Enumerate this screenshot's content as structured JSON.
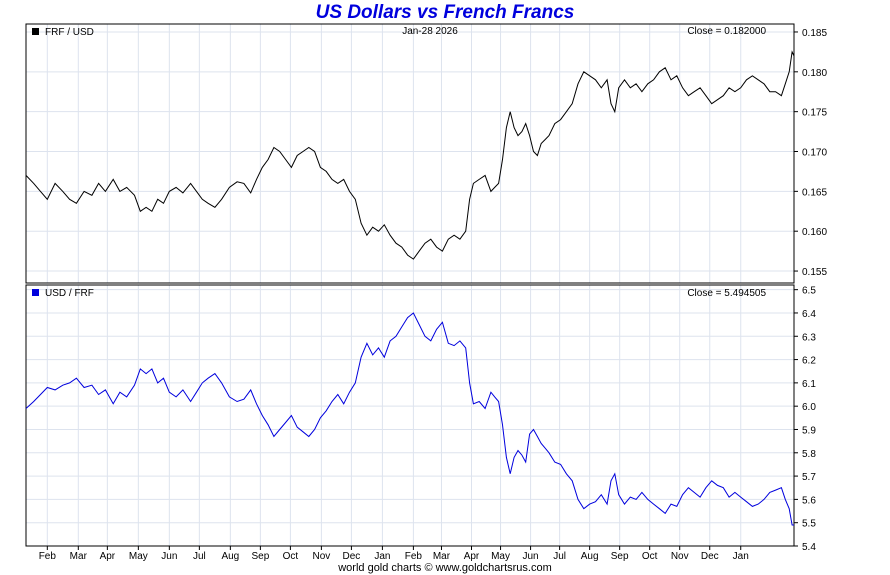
{
  "title": "US Dollars vs French Francs",
  "footer": "world gold charts © www.goldchartsrus.com",
  "chart_data": [
    {
      "type": "line",
      "series_label": "FRF / USD",
      "date_label": "Jan-28  2026",
      "close_label": "Close = 0.182000",
      "color": "#000000",
      "ylim": [
        0.1535,
        0.186
      ],
      "yticks": [
        "0.155",
        "0.160",
        "0.165",
        "0.170",
        "0.175",
        "0.180",
        "0.185"
      ],
      "x_months": [
        "Feb",
        "Mar",
        "Apr",
        "May",
        "Jun",
        "Jul",
        "Aug",
        "Sep",
        "Oct",
        "Nov",
        "Dec",
        "Jan",
        "Feb",
        "Mar",
        "Apr",
        "May",
        "Jun",
        "Jul",
        "Aug",
        "Sep",
        "Oct",
        "Nov",
        "Dec",
        "Jan"
      ],
      "grid": true,
      "points": [
        [
          0,
          0.167
        ],
        [
          8,
          0.166
        ],
        [
          15,
          0.165
        ],
        [
          22,
          0.164
        ],
        [
          30,
          0.166
        ],
        [
          38,
          0.165
        ],
        [
          45,
          0.164
        ],
        [
          52,
          0.1635
        ],
        [
          60,
          0.165
        ],
        [
          68,
          0.1645
        ],
        [
          75,
          0.166
        ],
        [
          82,
          0.165
        ],
        [
          90,
          0.1665
        ],
        [
          97,
          0.165
        ],
        [
          104,
          0.1655
        ],
        [
          112,
          0.1645
        ],
        [
          118,
          0.1625
        ],
        [
          124,
          0.163
        ],
        [
          130,
          0.1625
        ],
        [
          136,
          0.164
        ],
        [
          142,
          0.1635
        ],
        [
          148,
          0.165
        ],
        [
          155,
          0.1655
        ],
        [
          162,
          0.1648
        ],
        [
          170,
          0.166
        ],
        [
          176,
          0.165
        ],
        [
          182,
          0.164
        ],
        [
          188,
          0.1635
        ],
        [
          195,
          0.163
        ],
        [
          202,
          0.164
        ],
        [
          210,
          0.1655
        ],
        [
          218,
          0.1662
        ],
        [
          225,
          0.166
        ],
        [
          232,
          0.1648
        ],
        [
          238,
          0.1665
        ],
        [
          244,
          0.168
        ],
        [
          250,
          0.169
        ],
        [
          256,
          0.1705
        ],
        [
          262,
          0.17
        ],
        [
          268,
          0.169
        ],
        [
          274,
          0.168
        ],
        [
          280,
          0.1695
        ],
        [
          286,
          0.17
        ],
        [
          292,
          0.1705
        ],
        [
          298,
          0.17
        ],
        [
          304,
          0.168
        ],
        [
          310,
          0.1675
        ],
        [
          316,
          0.1665
        ],
        [
          322,
          0.166
        ],
        [
          328,
          0.1665
        ],
        [
          334,
          0.165
        ],
        [
          340,
          0.164
        ],
        [
          346,
          0.161
        ],
        [
          352,
          0.1595
        ],
        [
          358,
          0.1605
        ],
        [
          364,
          0.16
        ],
        [
          370,
          0.1608
        ],
        [
          376,
          0.1595
        ],
        [
          382,
          0.1585
        ],
        [
          388,
          0.158
        ],
        [
          394,
          0.157
        ],
        [
          400,
          0.1565
        ],
        [
          406,
          0.1575
        ],
        [
          412,
          0.1585
        ],
        [
          418,
          0.159
        ],
        [
          424,
          0.158
        ],
        [
          430,
          0.1575
        ],
        [
          436,
          0.159
        ],
        [
          442,
          0.1595
        ],
        [
          448,
          0.159
        ],
        [
          454,
          0.16
        ],
        [
          458,
          0.164
        ],
        [
          462,
          0.166
        ],
        [
          468,
          0.1665
        ],
        [
          474,
          0.167
        ],
        [
          480,
          0.165
        ],
        [
          484,
          0.1655
        ],
        [
          488,
          0.166
        ],
        [
          492,
          0.169
        ],
        [
          496,
          0.173
        ],
        [
          500,
          0.175
        ],
        [
          504,
          0.173
        ],
        [
          508,
          0.172
        ],
        [
          512,
          0.1725
        ],
        [
          516,
          0.1735
        ],
        [
          520,
          0.172
        ],
        [
          524,
          0.17
        ],
        [
          528,
          0.1695
        ],
        [
          532,
          0.171
        ],
        [
          536,
          0.1715
        ],
        [
          540,
          0.172
        ],
        [
          546,
          0.1735
        ],
        [
          552,
          0.174
        ],
        [
          558,
          0.175
        ],
        [
          564,
          0.176
        ],
        [
          570,
          0.1785
        ],
        [
          576,
          0.18
        ],
        [
          582,
          0.1795
        ],
        [
          588,
          0.179
        ],
        [
          594,
          0.178
        ],
        [
          600,
          0.179
        ],
        [
          604,
          0.176
        ],
        [
          608,
          0.175
        ],
        [
          612,
          0.178
        ],
        [
          618,
          0.179
        ],
        [
          624,
          0.178
        ],
        [
          630,
          0.1785
        ],
        [
          636,
          0.1775
        ],
        [
          642,
          0.1785
        ],
        [
          648,
          0.179
        ],
        [
          654,
          0.18
        ],
        [
          660,
          0.1805
        ],
        [
          666,
          0.179
        ],
        [
          672,
          0.1795
        ],
        [
          678,
          0.178
        ],
        [
          684,
          0.177
        ],
        [
          690,
          0.1775
        ],
        [
          696,
          0.178
        ],
        [
          702,
          0.177
        ],
        [
          708,
          0.176
        ],
        [
          714,
          0.1765
        ],
        [
          720,
          0.177
        ],
        [
          726,
          0.178
        ],
        [
          732,
          0.1775
        ],
        [
          738,
          0.178
        ],
        [
          744,
          0.179
        ],
        [
          750,
          0.1795
        ],
        [
          756,
          0.179
        ],
        [
          762,
          0.1785
        ],
        [
          768,
          0.1775
        ],
        [
          774,
          0.1775
        ],
        [
          780,
          0.177
        ],
        [
          784,
          0.1785
        ],
        [
          788,
          0.18
        ],
        [
          791,
          0.1825
        ],
        [
          793,
          0.182
        ]
      ]
    },
    {
      "type": "line",
      "series_label": "USD / FRF",
      "close_label": "Close = 5.494505",
      "color": "#0000dd",
      "ylim": [
        5.4,
        6.52
      ],
      "yticks": [
        "5.4",
        "5.5",
        "5.6",
        "5.7",
        "5.8",
        "5.9",
        "6.0",
        "6.1",
        "6.2",
        "6.3",
        "6.4",
        "6.5"
      ],
      "x_months": [
        "Feb",
        "Mar",
        "Apr",
        "May",
        "Jun",
        "Jul",
        "Aug",
        "Sep",
        "Oct",
        "Nov",
        "Dec",
        "Jan",
        "Feb",
        "Mar",
        "Apr",
        "May",
        "Jun",
        "Jul",
        "Aug",
        "Sep",
        "Oct",
        "Nov",
        "Dec",
        "Jan"
      ],
      "grid": true,
      "points": [
        [
          0,
          5.99
        ],
        [
          8,
          6.02
        ],
        [
          15,
          6.05
        ],
        [
          22,
          6.08
        ],
        [
          30,
          6.07
        ],
        [
          38,
          6.09
        ],
        [
          45,
          6.1
        ],
        [
          52,
          6.12
        ],
        [
          60,
          6.08
        ],
        [
          68,
          6.09
        ],
        [
          75,
          6.05
        ],
        [
          82,
          6.07
        ],
        [
          90,
          6.01
        ],
        [
          97,
          6.06
        ],
        [
          104,
          6.04
        ],
        [
          112,
          6.09
        ],
        [
          118,
          6.16
        ],
        [
          124,
          6.14
        ],
        [
          130,
          6.16
        ],
        [
          136,
          6.1
        ],
        [
          142,
          6.12
        ],
        [
          148,
          6.06
        ],
        [
          155,
          6.04
        ],
        [
          162,
          6.07
        ],
        [
          170,
          6.02
        ],
        [
          176,
          6.06
        ],
        [
          182,
          6.1
        ],
        [
          188,
          6.12
        ],
        [
          195,
          6.14
        ],
        [
          202,
          6.1
        ],
        [
          210,
          6.04
        ],
        [
          218,
          6.02
        ],
        [
          225,
          6.03
        ],
        [
          232,
          6.07
        ],
        [
          238,
          6.01
        ],
        [
          244,
          5.96
        ],
        [
          250,
          5.92
        ],
        [
          256,
          5.87
        ],
        [
          262,
          5.9
        ],
        [
          268,
          5.93
        ],
        [
          274,
          5.96
        ],
        [
          280,
          5.91
        ],
        [
          286,
          5.89
        ],
        [
          292,
          5.87
        ],
        [
          298,
          5.9
        ],
        [
          304,
          5.95
        ],
        [
          310,
          5.98
        ],
        [
          316,
          6.02
        ],
        [
          322,
          6.05
        ],
        [
          328,
          6.01
        ],
        [
          334,
          6.06
        ],
        [
          340,
          6.1
        ],
        [
          346,
          6.21
        ],
        [
          352,
          6.27
        ],
        [
          358,
          6.22
        ],
        [
          364,
          6.25
        ],
        [
          370,
          6.21
        ],
        [
          376,
          6.28
        ],
        [
          382,
          6.3
        ],
        [
          388,
          6.34
        ],
        [
          394,
          6.38
        ],
        [
          400,
          6.4
        ],
        [
          406,
          6.35
        ],
        [
          412,
          6.3
        ],
        [
          418,
          6.28
        ],
        [
          424,
          6.33
        ],
        [
          430,
          6.36
        ],
        [
          436,
          6.27
        ],
        [
          442,
          6.26
        ],
        [
          448,
          6.28
        ],
        [
          454,
          6.25
        ],
        [
          458,
          6.1
        ],
        [
          462,
          6.01
        ],
        [
          468,
          6.02
        ],
        [
          474,
          5.99
        ],
        [
          480,
          6.06
        ],
        [
          484,
          6.04
        ],
        [
          488,
          6.02
        ],
        [
          492,
          5.92
        ],
        [
          496,
          5.78
        ],
        [
          500,
          5.71
        ],
        [
          504,
          5.78
        ],
        [
          508,
          5.81
        ],
        [
          512,
          5.79
        ],
        [
          516,
          5.76
        ],
        [
          520,
          5.88
        ],
        [
          524,
          5.9
        ],
        [
          528,
          5.87
        ],
        [
          532,
          5.84
        ],
        [
          536,
          5.82
        ],
        [
          540,
          5.8
        ],
        [
          546,
          5.76
        ],
        [
          552,
          5.75
        ],
        [
          558,
          5.71
        ],
        [
          564,
          5.68
        ],
        [
          570,
          5.6
        ],
        [
          576,
          5.56
        ],
        [
          582,
          5.58
        ],
        [
          588,
          5.59
        ],
        [
          594,
          5.62
        ],
        [
          600,
          5.58
        ],
        [
          604,
          5.68
        ],
        [
          608,
          5.71
        ],
        [
          612,
          5.62
        ],
        [
          618,
          5.58
        ],
        [
          624,
          5.61
        ],
        [
          630,
          5.6
        ],
        [
          636,
          5.63
        ],
        [
          642,
          5.6
        ],
        [
          648,
          5.58
        ],
        [
          654,
          5.56
        ],
        [
          660,
          5.54
        ],
        [
          666,
          5.58
        ],
        [
          672,
          5.57
        ],
        [
          678,
          5.62
        ],
        [
          684,
          5.65
        ],
        [
          690,
          5.63
        ],
        [
          696,
          5.61
        ],
        [
          702,
          5.65
        ],
        [
          708,
          5.68
        ],
        [
          714,
          5.66
        ],
        [
          720,
          5.65
        ],
        [
          726,
          5.61
        ],
        [
          732,
          5.63
        ],
        [
          738,
          5.61
        ],
        [
          744,
          5.59
        ],
        [
          750,
          5.57
        ],
        [
          756,
          5.58
        ],
        [
          762,
          5.6
        ],
        [
          768,
          5.63
        ],
        [
          774,
          5.64
        ],
        [
          780,
          5.65
        ],
        [
          784,
          5.6
        ],
        [
          788,
          5.56
        ],
        [
          791,
          5.49
        ],
        [
          793,
          5.49
        ]
      ]
    }
  ]
}
